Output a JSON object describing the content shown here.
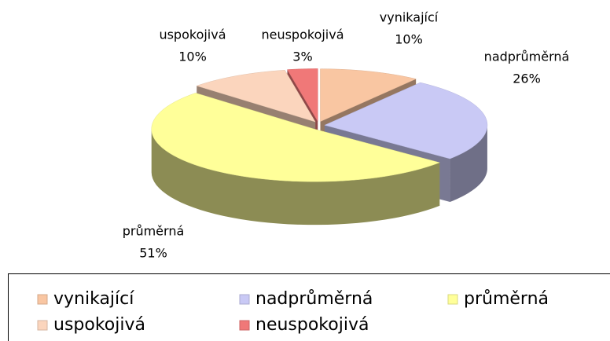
{
  "chart_data": {
    "type": "pie",
    "categories": [
      "vynikající",
      "nadprůměrná",
      "průměrná",
      "uspokojivá",
      "neuspokojivá"
    ],
    "values": [
      10,
      26,
      51,
      10,
      3
    ],
    "value_labels": [
      "10%",
      "26%",
      "51%",
      "10%",
      "3%"
    ],
    "colors": [
      "#f9c6a2",
      "#c9c9f5",
      "#ffff99",
      "#fbd5bd",
      "#f07878"
    ],
    "legend": "bottom"
  }
}
